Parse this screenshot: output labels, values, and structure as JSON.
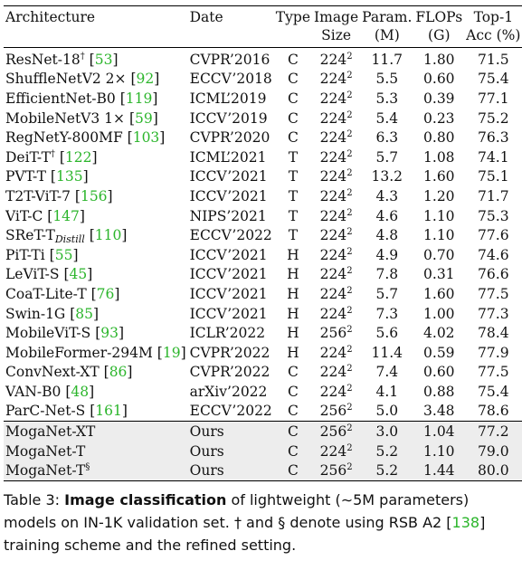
{
  "table": {
    "headers": {
      "architecture": "Architecture",
      "date": "Date",
      "type": "Type",
      "size_top": "Image",
      "size_bottom": "Size",
      "param_top": "Param.",
      "param_bottom": "(M)",
      "flops_top": "FLOPs",
      "flops_bottom": "(G)",
      "acc_top": "Top-1",
      "acc_bottom": "Acc (%)"
    },
    "rows": [
      {
        "name": "ResNet-18",
        "mark": "†",
        "sub": "",
        "cite": "53",
        "date": "CVPR’2016",
        "type": "C",
        "size": "224",
        "param": "11.7",
        "flops": "1.80",
        "acc": "71.5"
      },
      {
        "name": "ShuffleNetV2 2×",
        "mark": "",
        "sub": "",
        "cite": "92",
        "date": "ECCV’2018",
        "type": "C",
        "size": "224",
        "param": "5.5",
        "flops": "0.60",
        "acc": "75.4"
      },
      {
        "name": "EfficientNet-B0",
        "mark": "",
        "sub": "",
        "cite": "119",
        "date": "ICML’2019",
        "type": "C",
        "size": "224",
        "param": "5.3",
        "flops": "0.39",
        "acc": "77.1"
      },
      {
        "name": "MobileNetV3 1×",
        "mark": "",
        "sub": "",
        "cite": "59",
        "date": "ICCV’2019",
        "type": "C",
        "size": "224",
        "param": "5.4",
        "flops": "0.23",
        "acc": "75.2"
      },
      {
        "name": "RegNetY-800MF",
        "mark": "",
        "sub": "",
        "cite": "103",
        "date": "CVPR’2020",
        "type": "C",
        "size": "224",
        "param": "6.3",
        "flops": "0.80",
        "acc": "76.3"
      },
      {
        "name": "DeiT-T",
        "mark": "†",
        "sub": "",
        "cite": "122",
        "date": "ICML’2021",
        "type": "T",
        "size": "224",
        "param": "5.7",
        "flops": "1.08",
        "acc": "74.1"
      },
      {
        "name": "PVT-T",
        "mark": "",
        "sub": "",
        "cite": "135",
        "date": "ICCV’2021",
        "type": "T",
        "size": "224",
        "param": "13.2",
        "flops": "1.60",
        "acc": "75.1"
      },
      {
        "name": "T2T-ViT-7",
        "mark": "",
        "sub": "",
        "cite": "156",
        "date": "ICCV’2021",
        "type": "T",
        "size": "224",
        "param": "4.3",
        "flops": "1.20",
        "acc": "71.7"
      },
      {
        "name": "ViT-C",
        "mark": "",
        "sub": "",
        "cite": "147",
        "date": "NIPS’2021",
        "type": "T",
        "size": "224",
        "param": "4.6",
        "flops": "1.10",
        "acc": "75.3"
      },
      {
        "name": "SReT-T",
        "mark": "",
        "sub": "Distill",
        "cite": "110",
        "date": "ECCV’2022",
        "type": "T",
        "size": "224",
        "param": "4.8",
        "flops": "1.10",
        "acc": "77.6"
      },
      {
        "name": "PiT-Ti",
        "mark": "",
        "sub": "",
        "cite": "55",
        "date": "ICCV’2021",
        "type": "H",
        "size": "224",
        "param": "4.9",
        "flops": "0.70",
        "acc": "74.6"
      },
      {
        "name": "LeViT-S",
        "mark": "",
        "sub": "",
        "cite": "45",
        "date": "ICCV’2021",
        "type": "H",
        "size": "224",
        "param": "7.8",
        "flops": "0.31",
        "acc": "76.6"
      },
      {
        "name": "CoaT-Lite-T",
        "mark": "",
        "sub": "",
        "cite": "76",
        "date": "ICCV’2021",
        "type": "H",
        "size": "224",
        "param": "5.7",
        "flops": "1.60",
        "acc": "77.5"
      },
      {
        "name": "Swin-1G",
        "mark": "",
        "sub": "",
        "cite": "85",
        "date": "ICCV’2021",
        "type": "H",
        "size": "224",
        "param": "7.3",
        "flops": "1.00",
        "acc": "77.3"
      },
      {
        "name": "MobileViT-S",
        "mark": "",
        "sub": "",
        "cite": "93",
        "date": "ICLR’2022",
        "type": "H",
        "size": "256",
        "param": "5.6",
        "flops": "4.02",
        "acc": "78.4"
      },
      {
        "name": "MobileFormer-294M",
        "mark": "",
        "sub": "",
        "cite": "19",
        "date": "CVPR’2022",
        "type": "H",
        "size": "224",
        "param": "11.4",
        "flops": "0.59",
        "acc": "77.9"
      },
      {
        "name": "ConvNext-XT",
        "mark": "",
        "sub": "",
        "cite": "86",
        "date": "CVPR’2022",
        "type": "C",
        "size": "224",
        "param": "7.4",
        "flops": "0.60",
        "acc": "77.5"
      },
      {
        "name": "VAN-B0",
        "mark": "",
        "sub": "",
        "cite": "48",
        "date": "arXiv’2022",
        "type": "C",
        "size": "224",
        "param": "4.1",
        "flops": "0.88",
        "acc": "75.4"
      },
      {
        "name": "ParC-Net-S",
        "mark": "",
        "sub": "",
        "cite": "161",
        "date": "ECCV’2022",
        "type": "C",
        "size": "256",
        "param": "5.0",
        "flops": "3.48",
        "acc": "78.6"
      }
    ],
    "ours_rows": [
      {
        "name": "MogaNet-XT",
        "mark": "",
        "date": "Ours",
        "type": "C",
        "size": "256",
        "param": "3.0",
        "flops": "1.04",
        "acc": "77.2"
      },
      {
        "name": "MogaNet-T",
        "mark": "",
        "date": "Ours",
        "type": "C",
        "size": "224",
        "param": "5.2",
        "flops": "1.10",
        "acc": "79.0"
      },
      {
        "name": "MogaNet-T",
        "mark": "§",
        "date": "Ours",
        "type": "C",
        "size": "256",
        "param": "5.2",
        "flops": "1.44",
        "acc": "80.0"
      }
    ],
    "size_exponent": "2"
  },
  "caption": {
    "label": "Table 3: ",
    "title": "Image classification",
    "text1": " of lightweight (∼5M parameters) models on IN-1K validation set. † and § denote using RSB A2 [",
    "cite": "138",
    "text2": "] training scheme and the refined setting."
  },
  "colors": {
    "cite": "#2bb52b",
    "ours_bg": "#ededed"
  }
}
